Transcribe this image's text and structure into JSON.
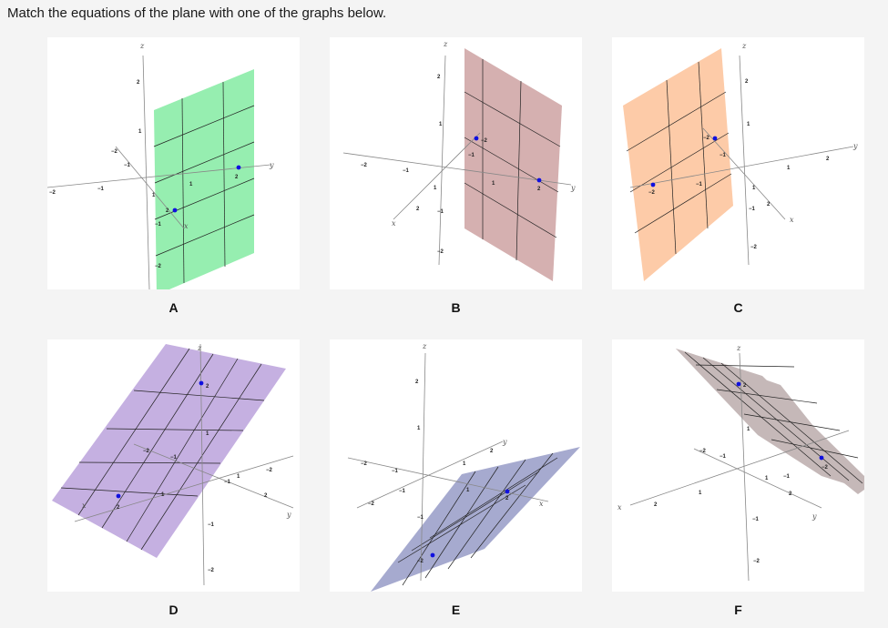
{
  "prompt": "Match the equations of the plane with one of the graphs below.",
  "axis_labels": {
    "x": "x",
    "y": "y",
    "z": "z"
  },
  "panels": [
    {
      "id": "A",
      "label": "A",
      "color": "#96eeb0"
    },
    {
      "id": "B",
      "label": "B",
      "color": "#d5b0b0"
    },
    {
      "id": "C",
      "label": "C",
      "color": "#fdcba8"
    },
    {
      "id": "D",
      "label": "D",
      "color": "#c5b0e1"
    },
    {
      "id": "E",
      "label": "E",
      "color": "#a6aacf"
    },
    {
      "id": "F",
      "label": "F",
      "color": "#c5b8b8"
    }
  ],
  "ticks": {
    "neg2": "−2",
    "neg1": "−1",
    "pos1": "1",
    "pos2": "2"
  }
}
